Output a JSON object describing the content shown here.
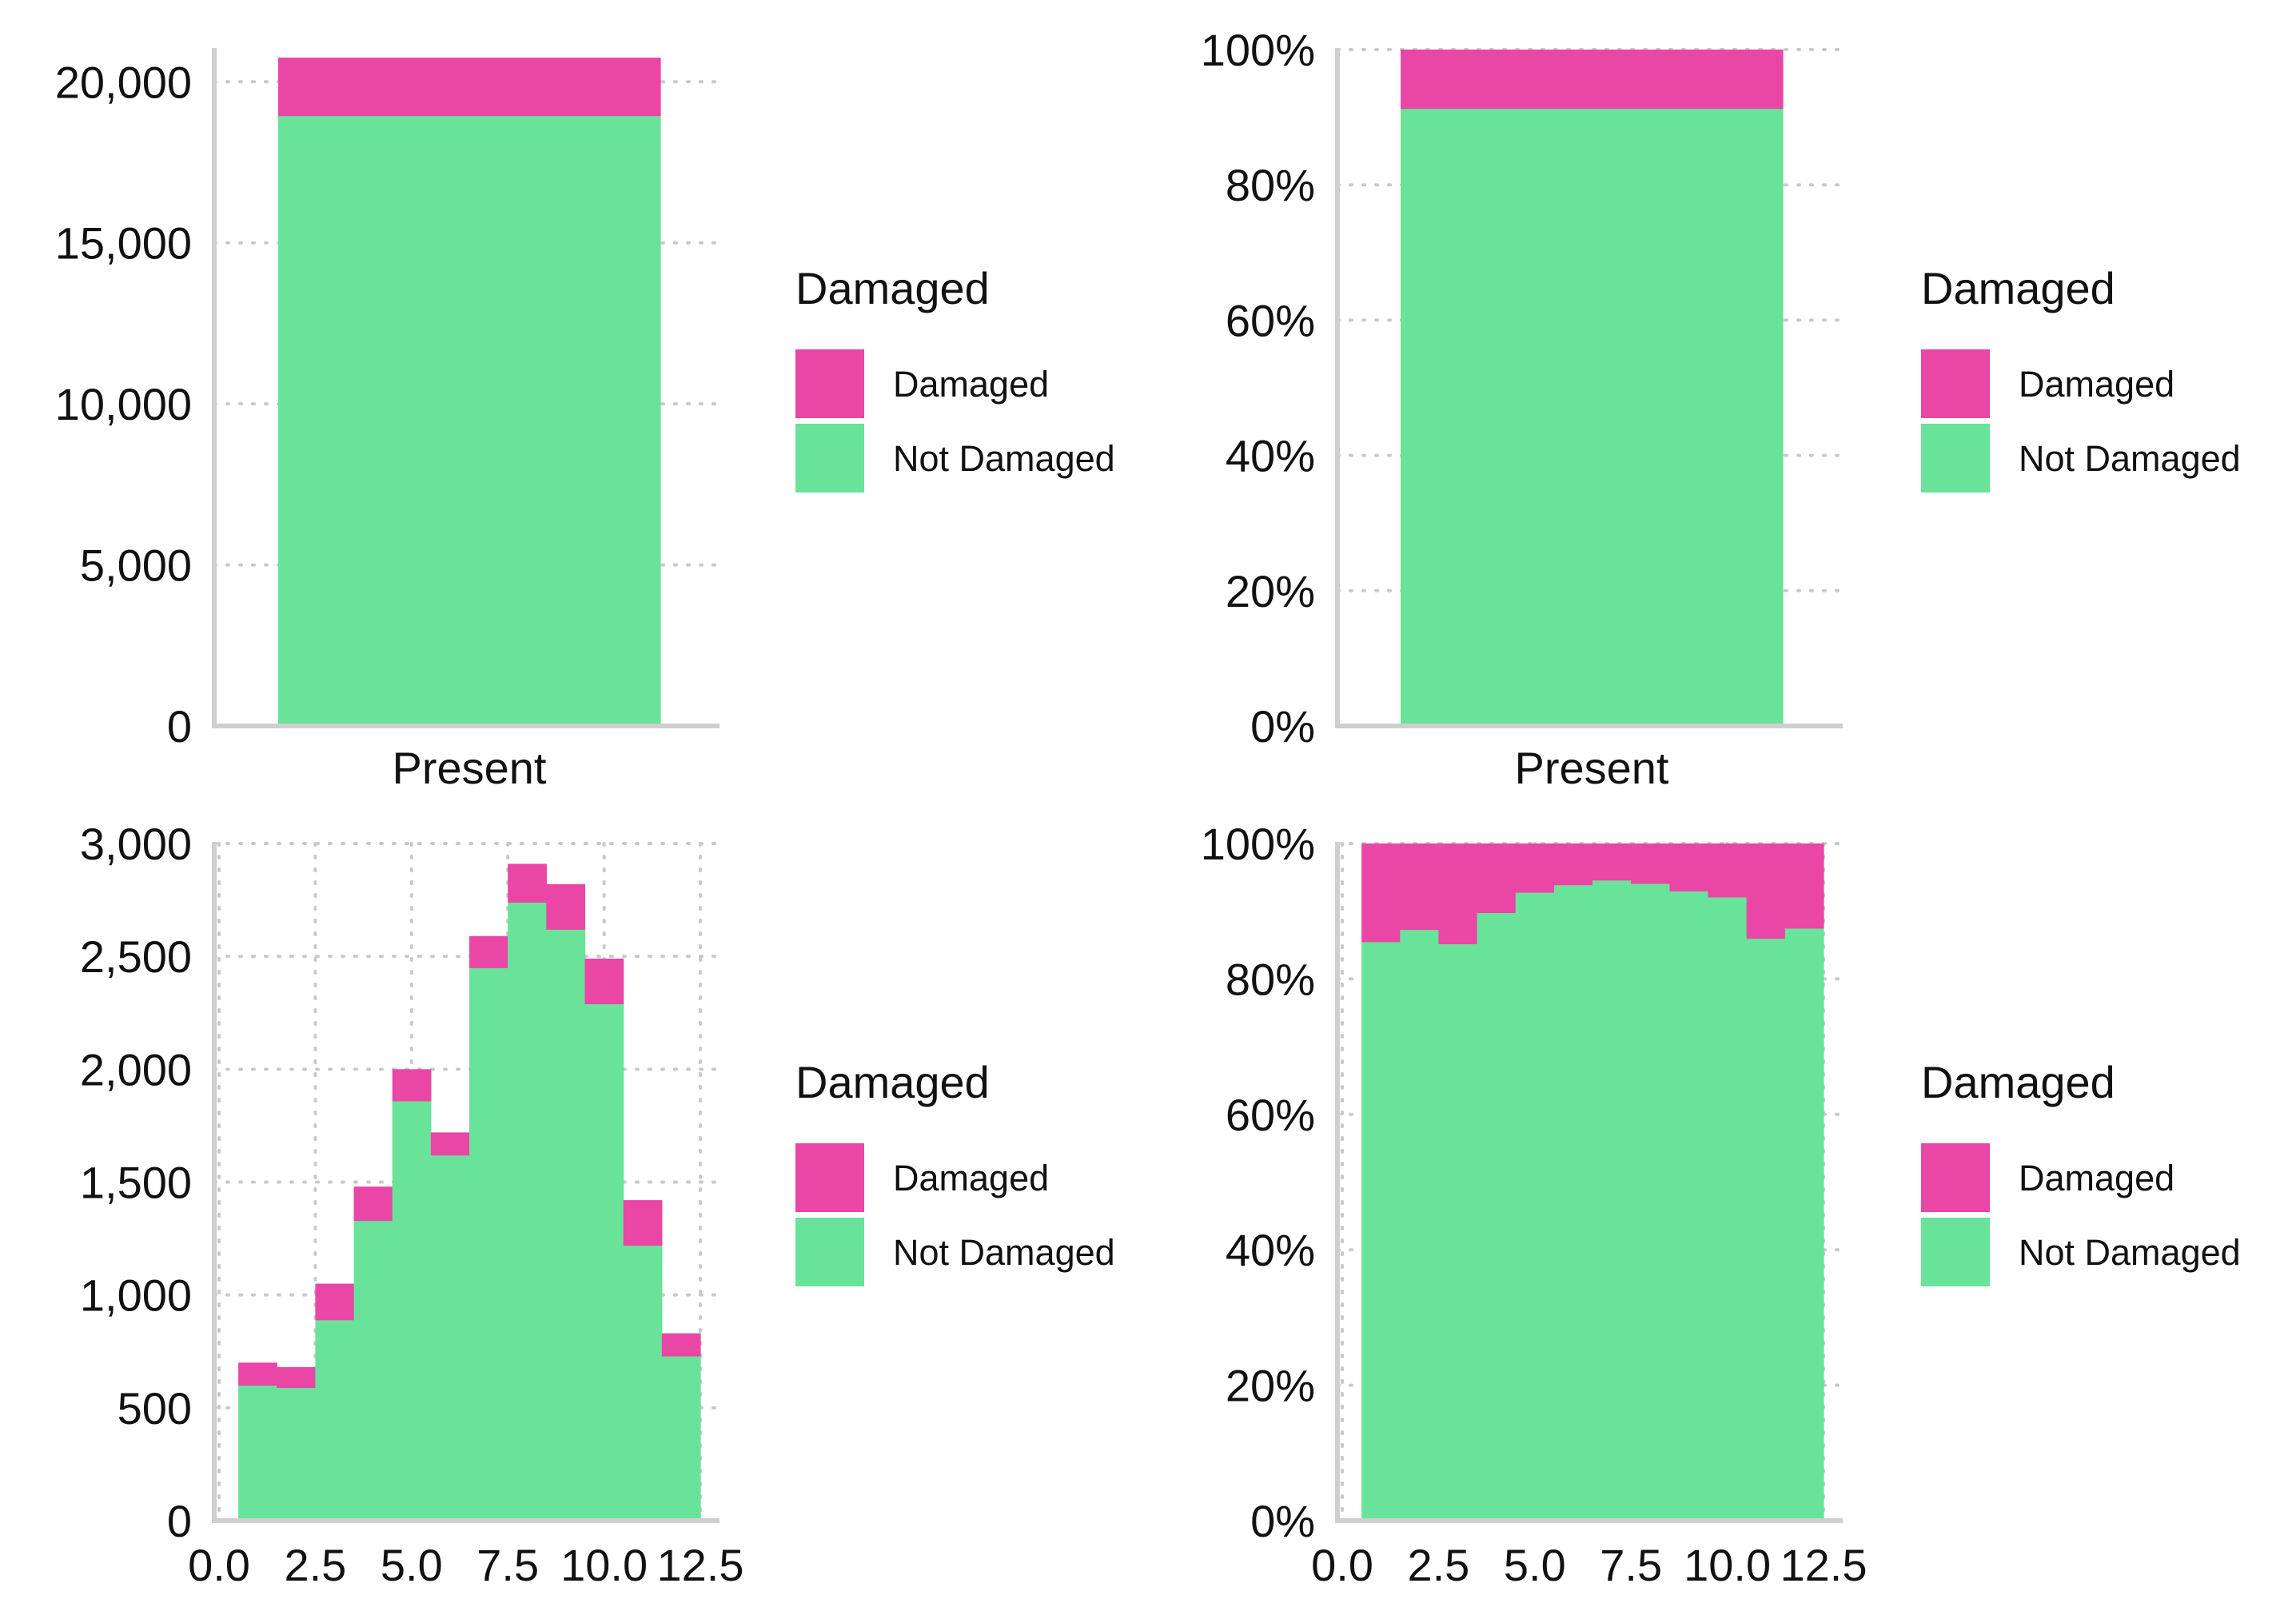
{
  "colors": {
    "damaged": "#E946A5",
    "not_damaged": "#69E399",
    "axis": "#cfcfcf",
    "grid": "#c9c9c9"
  },
  "chart_data": [
    {
      "id": "top-left",
      "type": "bar",
      "stacked": true,
      "categories": [
        "Present"
      ],
      "series": [
        {
          "name": "Not Damaged",
          "values": [
            18950
          ]
        },
        {
          "name": "Damaged",
          "values": [
            1800
          ]
        }
      ],
      "ylim": [
        0,
        21000
      ],
      "yticks": [
        0,
        5000,
        10000,
        15000,
        20000
      ],
      "ytick_labels": [
        "0",
        "5,000",
        "10,000",
        "15,000",
        "20,000"
      ],
      "legend": {
        "title": "Damaged",
        "items": [
          "Damaged",
          "Not Damaged"
        ],
        "placement": "right"
      }
    },
    {
      "id": "top-right",
      "type": "bar",
      "stacked": true,
      "normalized": true,
      "categories": [
        "Present"
      ],
      "series": [
        {
          "name": "Not Damaged",
          "values": [
            91.3
          ]
        },
        {
          "name": "Damaged",
          "values": [
            8.7
          ]
        }
      ],
      "ylim": [
        0,
        100
      ],
      "yticks": [
        0,
        20,
        40,
        60,
        80,
        100
      ],
      "ytick_labels": [
        "0%",
        "20%",
        "40%",
        "60%",
        "80%",
        "100%"
      ],
      "legend": {
        "title": "Damaged",
        "items": [
          "Damaged",
          "Not Damaged"
        ],
        "placement": "right"
      }
    },
    {
      "id": "bottom-left",
      "type": "bar",
      "subtype": "histogram",
      "stacked": true,
      "x": [
        1,
        2,
        3,
        4,
        5,
        6,
        7,
        8,
        9,
        10,
        11,
        12
      ],
      "series": [
        {
          "name": "Not Damaged",
          "values": [
            600,
            590,
            890,
            1330,
            1860,
            1620,
            2450,
            2740,
            2620,
            2290,
            1220,
            730
          ]
        },
        {
          "name": "Damaged",
          "values": [
            100,
            90,
            160,
            150,
            140,
            100,
            140,
            170,
            200,
            200,
            200,
            100
          ]
        }
      ],
      "xlim": [
        0,
        12.5
      ],
      "xticks": [
        0,
        2.5,
        5,
        7.5,
        10,
        12.5
      ],
      "xtick_labels": [
        "0.0",
        "2.5",
        "5.0",
        "7.5",
        "10.0",
        "12.5"
      ],
      "ylim": [
        0,
        3000
      ],
      "yticks": [
        0,
        500,
        1000,
        1500,
        2000,
        2500,
        3000
      ],
      "ytick_labels": [
        "0",
        "500",
        "1,000",
        "1,500",
        "2,000",
        "2,500",
        "3,000"
      ],
      "grid": true,
      "legend": {
        "title": "Damaged",
        "items": [
          "Damaged",
          "Not Damaged"
        ],
        "placement": "right"
      }
    },
    {
      "id": "bottom-right",
      "type": "bar",
      "subtype": "histogram",
      "stacked": true,
      "normalized": true,
      "x": [
        1,
        2,
        3,
        4,
        5,
        6,
        7,
        8,
        9,
        10,
        11,
        12
      ],
      "series": [
        {
          "name": "Not Damaged",
          "values": [
            85.5,
            87.3,
            85.2,
            89.8,
            92.8,
            93.9,
            94.6,
            94.1,
            93.0,
            92.1,
            86.0,
            87.5
          ]
        },
        {
          "name": "Damaged",
          "values": [
            14.5,
            12.7,
            14.8,
            10.2,
            7.2,
            6.1,
            5.4,
            5.9,
            7.0,
            7.9,
            14.0,
            12.5
          ]
        }
      ],
      "xlim": [
        0,
        12.5
      ],
      "xticks": [
        0,
        2.5,
        5,
        7.5,
        10,
        12.5
      ],
      "xtick_labels": [
        "0.0",
        "2.5",
        "5.0",
        "7.5",
        "10.0",
        "12.5"
      ],
      "ylim": [
        0,
        100
      ],
      "yticks": [
        0,
        20,
        40,
        60,
        80,
        100
      ],
      "ytick_labels": [
        "0%",
        "20%",
        "40%",
        "60%",
        "80%",
        "100%"
      ],
      "grid": true,
      "legend": {
        "title": "Damaged",
        "items": [
          "Damaged",
          "Not Damaged"
        ],
        "placement": "right"
      }
    }
  ]
}
